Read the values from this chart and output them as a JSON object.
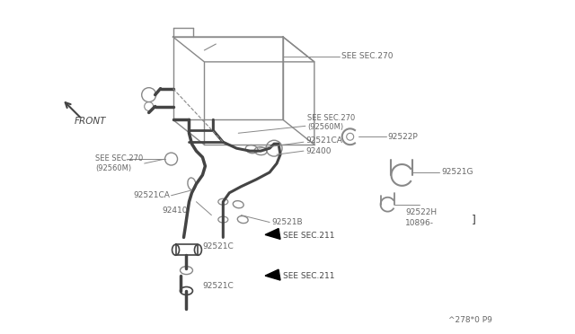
{
  "bg_color": "#ffffff",
  "line_color": "#888888",
  "dark_color": "#444444",
  "text_color": "#666666",
  "watermark": "^278*0 P9",
  "labels": {
    "see_sec_270_top": "SEE SEC.270",
    "see_sec_270_mid1": "SEE SEC.270\n(92560M)",
    "see_sec_270_mid2": "SEE SEC.270\n(92560M)",
    "part_92521ca_top": "92521CA",
    "part_92521ca_bot": "92521CA",
    "part_92522p": "92522P",
    "part_92400": "92400",
    "part_92521g": "92521G",
    "part_92522h": "92522H",
    "part_10896": "10896-",
    "part_92410": "92410",
    "part_92521b": "92521B",
    "see_sec_211_top": "SEE SEC.211",
    "part_92521c_mid": "92521C",
    "see_sec_211_bot": "SEE SEC.211",
    "part_92521c_bot": "92521C",
    "front": "FRONT"
  }
}
